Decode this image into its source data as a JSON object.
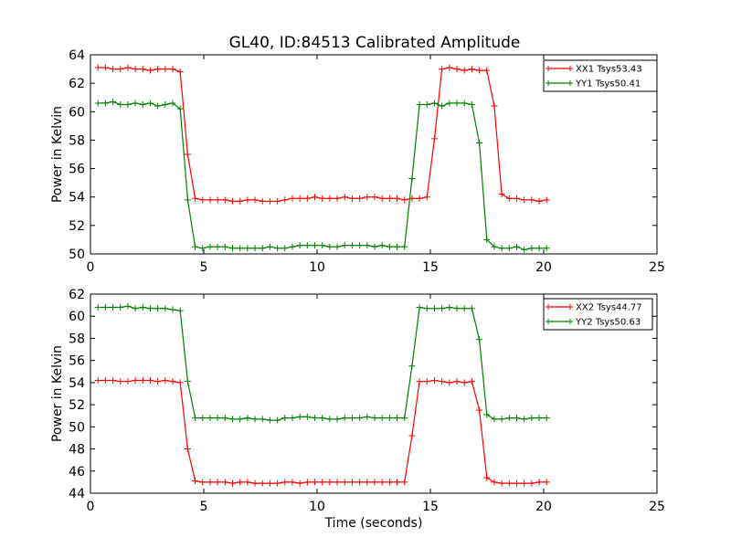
{
  "title": "GL40, ID:84513 Calibrated Amplitude",
  "chart_data": [
    {
      "type": "line",
      "title": "GL40, ID:84513 Calibrated Amplitude",
      "xlabel": "",
      "ylabel": "Power in Kelvin",
      "xlim": [
        0,
        25
      ],
      "ylim": [
        50,
        64
      ],
      "xticks": [
        0,
        5,
        10,
        15,
        20,
        25
      ],
      "yticks": [
        50,
        52,
        54,
        56,
        58,
        60,
        62,
        64
      ],
      "grid": false,
      "legend": "top-right",
      "x": [
        0.33,
        0.66,
        0.99,
        1.32,
        1.65,
        1.98,
        2.31,
        2.64,
        2.97,
        3.3,
        3.63,
        3.96,
        4.29,
        4.62,
        4.95,
        5.28,
        5.61,
        5.94,
        6.27,
        6.6,
        6.93,
        7.26,
        7.59,
        7.92,
        8.25,
        8.58,
        8.91,
        9.24,
        9.57,
        9.9,
        10.23,
        10.56,
        10.89,
        11.22,
        11.55,
        11.88,
        12.21,
        12.54,
        12.87,
        13.2,
        13.53,
        13.86,
        14.19,
        14.52,
        14.85,
        15.18,
        15.51,
        15.84,
        16.17,
        16.5,
        16.83,
        17.16,
        17.49,
        17.82,
        18.15,
        18.48,
        18.81,
        19.14,
        19.47,
        19.8,
        20.13
      ],
      "series": [
        {
          "name": "XX1 Tsys53.43",
          "color": "#ff0000",
          "values": [
            63.1,
            63.1,
            63.0,
            63.0,
            63.1,
            63.0,
            63.0,
            62.9,
            63.0,
            63.0,
            63.0,
            62.8,
            57.0,
            53.9,
            53.8,
            53.8,
            53.8,
            53.8,
            53.7,
            53.7,
            53.8,
            53.8,
            53.7,
            53.7,
            53.7,
            53.8,
            53.9,
            53.9,
            53.9,
            54.0,
            53.9,
            53.9,
            53.9,
            54.0,
            53.9,
            53.9,
            54.0,
            54.0,
            53.9,
            53.9,
            53.9,
            53.8,
            53.9,
            53.9,
            54.0,
            58.1,
            63.0,
            63.1,
            63.0,
            62.9,
            63.0,
            62.9,
            62.9,
            60.4,
            54.2,
            53.9,
            53.9,
            53.8,
            53.8,
            53.7,
            53.8
          ]
        },
        {
          "name": "YY1 Tsys50.41",
          "color": "#008000",
          "values": [
            60.6,
            60.6,
            60.7,
            60.5,
            60.5,
            60.6,
            60.5,
            60.6,
            60.4,
            60.5,
            60.6,
            60.2,
            53.8,
            50.5,
            50.4,
            50.5,
            50.5,
            50.5,
            50.4,
            50.4,
            50.4,
            50.4,
            50.4,
            50.5,
            50.4,
            50.4,
            50.5,
            50.6,
            50.6,
            50.6,
            50.6,
            50.5,
            50.5,
            50.6,
            50.6,
            50.6,
            50.6,
            50.5,
            50.6,
            50.5,
            50.5,
            50.5,
            55.3,
            60.5,
            60.5,
            60.6,
            60.4,
            60.6,
            60.6,
            60.6,
            60.5,
            57.8,
            51.0,
            50.5,
            50.4,
            50.4,
            50.5,
            50.3,
            50.4,
            50.4,
            50.4
          ]
        }
      ]
    },
    {
      "type": "line",
      "title": "",
      "xlabel": "Time (seconds)",
      "ylabel": "Power in Kelvin",
      "xlim": [
        0,
        25
      ],
      "ylim": [
        44,
        62
      ],
      "xticks": [
        0,
        5,
        10,
        15,
        20,
        25
      ],
      "yticks": [
        44,
        46,
        48,
        50,
        52,
        54,
        56,
        58,
        60,
        62
      ],
      "grid": false,
      "legend": "top-right",
      "x": [
        0.33,
        0.66,
        0.99,
        1.32,
        1.65,
        1.98,
        2.31,
        2.64,
        2.97,
        3.3,
        3.63,
        3.96,
        4.29,
        4.62,
        4.95,
        5.28,
        5.61,
        5.94,
        6.27,
        6.6,
        6.93,
        7.26,
        7.59,
        7.92,
        8.25,
        8.58,
        8.91,
        9.24,
        9.57,
        9.9,
        10.23,
        10.56,
        10.89,
        11.22,
        11.55,
        11.88,
        12.21,
        12.54,
        12.87,
        13.2,
        13.53,
        13.86,
        14.19,
        14.52,
        14.85,
        15.18,
        15.51,
        15.84,
        16.17,
        16.5,
        16.83,
        17.16,
        17.49,
        17.82,
        18.15,
        18.48,
        18.81,
        19.14,
        19.47,
        19.8,
        20.13
      ],
      "series": [
        {
          "name": "XX2 Tsys44.77",
          "color": "#ff0000",
          "values": [
            54.2,
            54.2,
            54.2,
            54.1,
            54.1,
            54.2,
            54.2,
            54.2,
            54.1,
            54.2,
            54.1,
            54.0,
            48.0,
            45.1,
            45.0,
            45.0,
            45.0,
            45.0,
            44.9,
            45.0,
            45.0,
            44.9,
            44.9,
            44.9,
            44.9,
            45.0,
            45.0,
            44.9,
            45.0,
            45.0,
            45.0,
            45.0,
            45.0,
            45.0,
            45.0,
            45.0,
            45.0,
            45.0,
            45.0,
            45.0,
            45.0,
            45.0,
            49.2,
            54.1,
            54.1,
            54.2,
            54.1,
            54.0,
            54.1,
            54.0,
            54.1,
            51.5,
            45.4,
            45.0,
            44.9,
            44.9,
            44.9,
            44.9,
            44.9,
            45.0,
            45.0
          ]
        },
        {
          "name": "YY2 Tsys50.63",
          "color": "#008000",
          "values": [
            60.8,
            60.8,
            60.8,
            60.8,
            60.9,
            60.7,
            60.8,
            60.7,
            60.7,
            60.7,
            60.6,
            60.5,
            54.1,
            50.8,
            50.8,
            50.8,
            50.8,
            50.8,
            50.7,
            50.7,
            50.8,
            50.7,
            50.7,
            50.6,
            50.6,
            50.8,
            50.8,
            50.9,
            50.9,
            50.8,
            50.8,
            50.7,
            50.7,
            50.8,
            50.8,
            50.8,
            50.9,
            50.8,
            50.8,
            50.8,
            50.8,
            50.8,
            55.5,
            60.8,
            60.7,
            60.7,
            60.7,
            60.8,
            60.7,
            60.7,
            60.7,
            57.9,
            51.1,
            50.7,
            50.7,
            50.8,
            50.8,
            50.7,
            50.8,
            50.8,
            50.8
          ]
        }
      ]
    }
  ]
}
